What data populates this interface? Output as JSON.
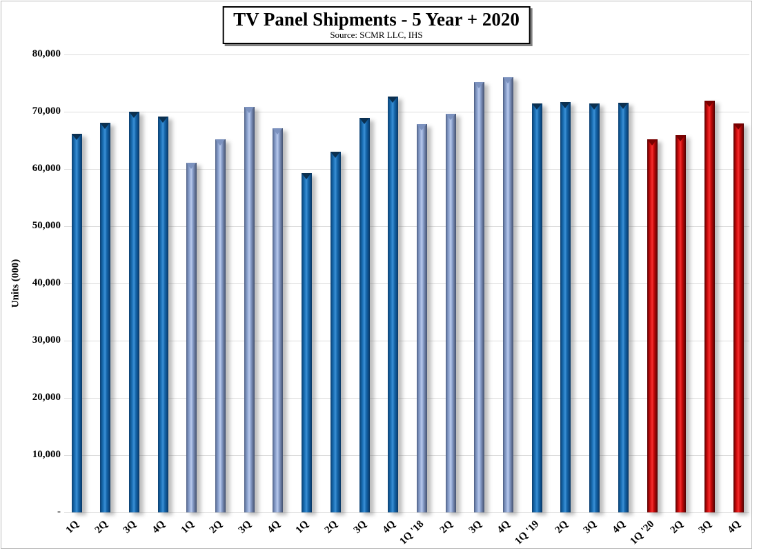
{
  "page": {
    "background": "#ffffff",
    "frame_border_color": "#b9b9b9"
  },
  "chart_data": {
    "type": "bar",
    "title": "TV Panel Shipments - 5 Year + 2020",
    "subtitle": "Source: SCMR LLC, IHS",
    "ylabel": "Units (000)",
    "xlabel": "",
    "ylim": [
      0,
      80000
    ],
    "ytick_interval": 10000,
    "ytick_labels": [
      "80,000",
      "70,000",
      "60,000",
      "50,000",
      "40,000",
      "30,000",
      "20,000",
      "10,000",
      "-"
    ],
    "grid": true,
    "legend": "none",
    "categories": [
      "1Q",
      "2Q",
      "3Q",
      "4Q",
      "1Q",
      "2Q",
      "3Q",
      "4Q",
      "1Q",
      "2Q",
      "3Q",
      "4Q",
      "1Q '18",
      "2Q",
      "3Q",
      "4Q",
      "1Q '19",
      "2Q",
      "3Q",
      "4Q",
      "1Q '20",
      "2Q",
      "3Q",
      "4Q"
    ],
    "values": [
      66200,
      68100,
      70000,
      69200,
      61100,
      65200,
      70900,
      67100,
      59300,
      63000,
      68900,
      72700,
      67800,
      69600,
      75200,
      76000,
      71400,
      71700,
      71500,
      71600,
      65200,
      65900,
      71900,
      67900
    ],
    "color_groups": [
      "blue",
      "blue",
      "blue",
      "blue",
      "light",
      "light",
      "light",
      "light",
      "blue",
      "blue",
      "blue",
      "blue",
      "light",
      "light",
      "light",
      "light",
      "blue",
      "blue",
      "blue",
      "blue",
      "red",
      "red",
      "red",
      "red"
    ],
    "colors": {
      "blue": "#1a6fb5",
      "light": "#9bb1da",
      "red": "#e01010"
    },
    "bar_style": "3d-gradient-with-top-notch-and-right-shadow"
  }
}
